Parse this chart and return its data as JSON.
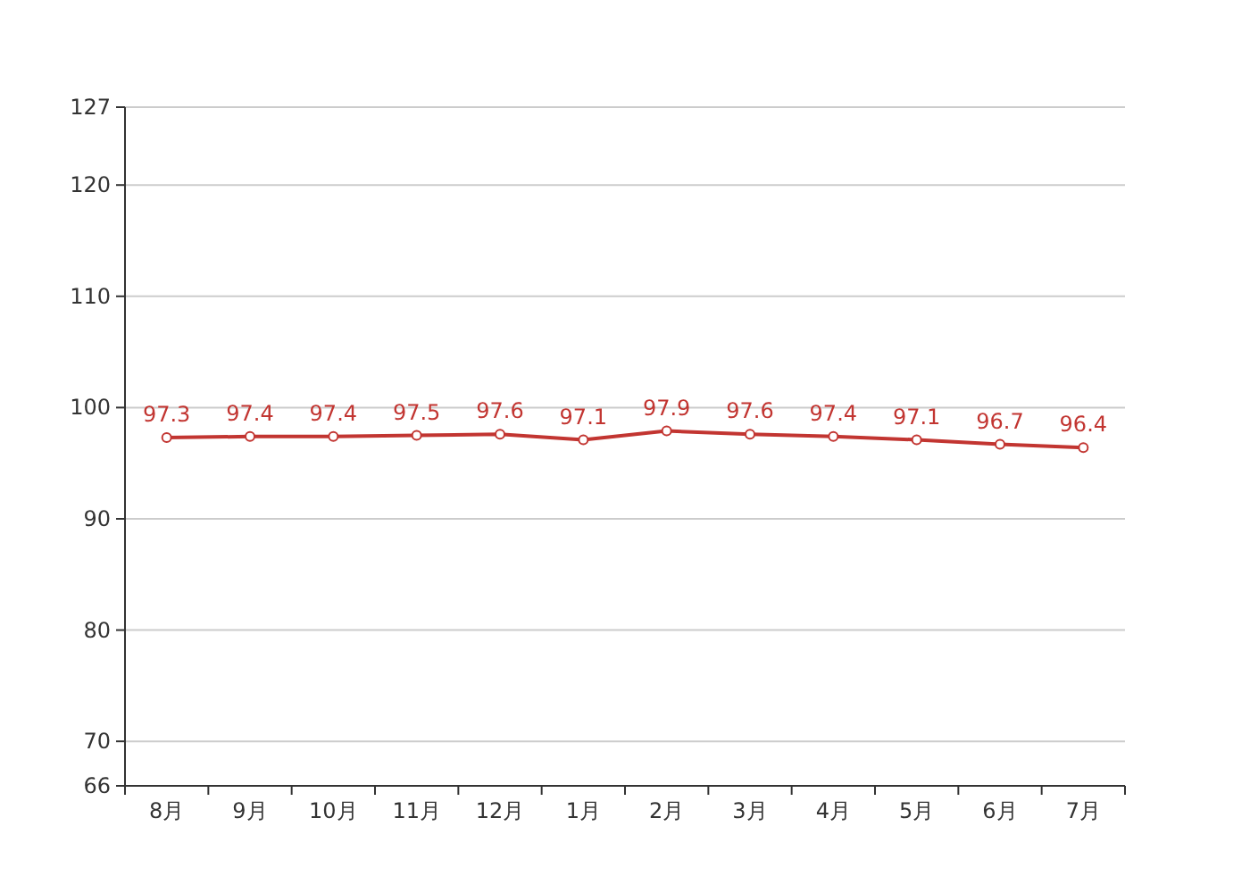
{
  "chart_data": {
    "type": "line",
    "categories": [
      "8月",
      "9月",
      "10月",
      "11月",
      "12月",
      "1月",
      "2月",
      "3月",
      "4月",
      "5月",
      "6月",
      "7月"
    ],
    "values": [
      97.3,
      97.4,
      97.4,
      97.5,
      97.6,
      97.1,
      97.9,
      97.6,
      97.4,
      97.1,
      96.7,
      96.4
    ],
    "color": "#c23531",
    "ylim": [
      66,
      127
    ],
    "yticks": [
      66,
      70,
      80,
      90,
      100,
      110,
      120,
      127
    ],
    "grid": "y",
    "marker": "circle",
    "line_style": "solid",
    "data_labels": true
  }
}
